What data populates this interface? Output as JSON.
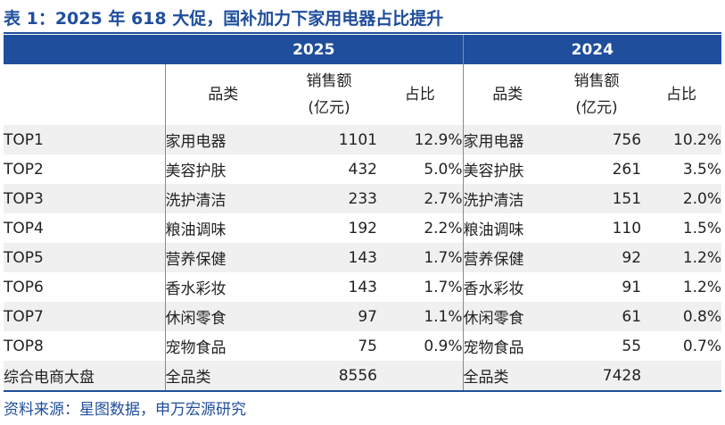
{
  "title": "表 1：2025 年 618 大促，国补加力下家用电器占比提升",
  "years": [
    "2025",
    "2024"
  ],
  "headers": {
    "category": "品类",
    "sales_line1": "销售额",
    "sales_line2": "(亿元)",
    "share": "占比"
  },
  "rows": [
    {
      "rank": "TOP1",
      "cat_2025": "家用电器",
      "sales_2025": "1101",
      "share_2025": "12.9%",
      "cat_2024": "家用电器",
      "sales_2024": "756",
      "share_2024": "10.2%"
    },
    {
      "rank": "TOP2",
      "cat_2025": "美容护肤",
      "sales_2025": "432",
      "share_2025": "5.0%",
      "cat_2024": "美容护肤",
      "sales_2024": "261",
      "share_2024": "3.5%"
    },
    {
      "rank": "TOP3",
      "cat_2025": "洗护清洁",
      "sales_2025": "233",
      "share_2025": "2.7%",
      "cat_2024": "洗护清洁",
      "sales_2024": "151",
      "share_2024": "2.0%"
    },
    {
      "rank": "TOP4",
      "cat_2025": "粮油调味",
      "sales_2025": "192",
      "share_2025": "2.2%",
      "cat_2024": "粮油调味",
      "sales_2024": "110",
      "share_2024": "1.5%"
    },
    {
      "rank": "TOP5",
      "cat_2025": "营养保健",
      "sales_2025": "143",
      "share_2025": "1.7%",
      "cat_2024": "营养保健",
      "sales_2024": "92",
      "share_2024": "1.2%"
    },
    {
      "rank": "TOP6",
      "cat_2025": "香水彩妆",
      "sales_2025": "143",
      "share_2025": "1.7%",
      "cat_2024": "香水彩妆",
      "sales_2024": "91",
      "share_2024": "1.2%"
    },
    {
      "rank": "TOP7",
      "cat_2025": "休闲零食",
      "sales_2025": "97",
      "share_2025": "1.1%",
      "cat_2024": "休闲零食",
      "sales_2024": "61",
      "share_2024": "0.8%"
    },
    {
      "rank": "TOP8",
      "cat_2025": "宠物食品",
      "sales_2025": "75",
      "share_2025": "0.9%",
      "cat_2024": "宠物食品",
      "sales_2024": "55",
      "share_2024": "0.7%"
    }
  ],
  "total": {
    "rank": "综合电商大盘",
    "cat_2025": "全品类",
    "sales_2025": "8556",
    "cat_2024": "全品类",
    "sales_2024": "7428"
  },
  "source": "资料来源：星图数据，申万宏源研究",
  "colors": {
    "accent": "#1f4e9c",
    "row_stripe": "#f0f0f0"
  }
}
